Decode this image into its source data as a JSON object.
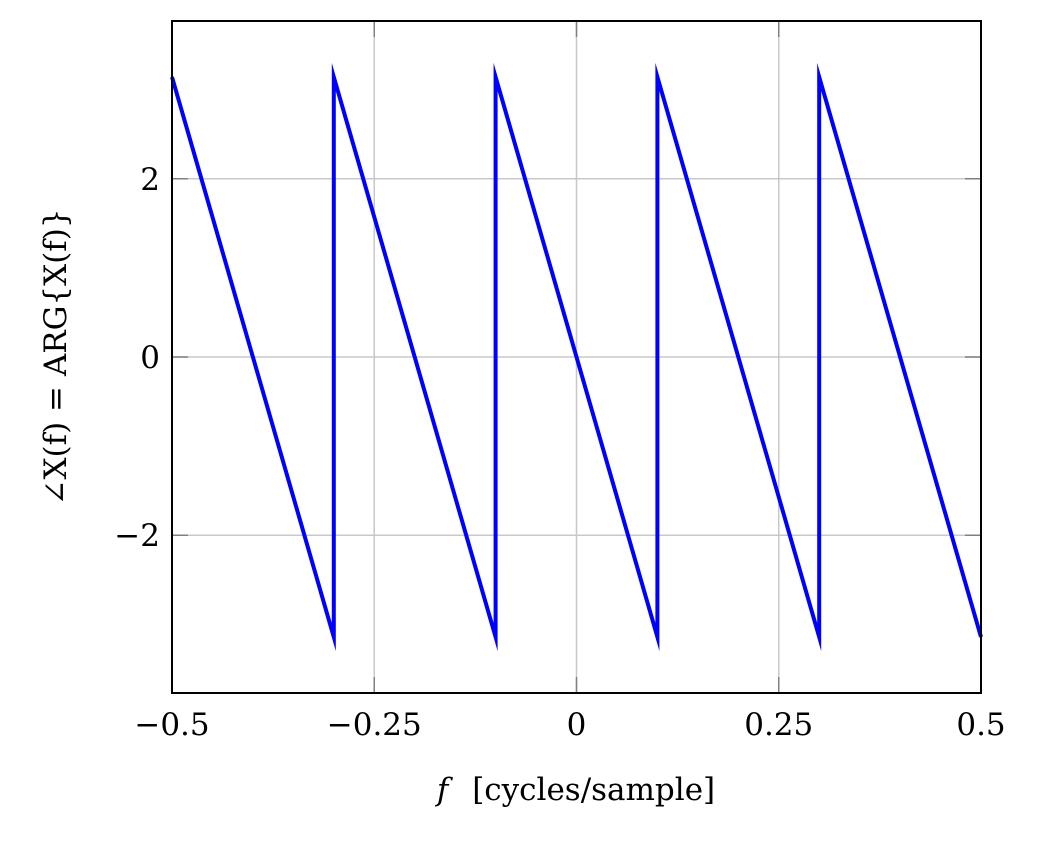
{
  "chart_data": {
    "type": "line",
    "title": "",
    "xlabel": "f  [cycles/sample]",
    "xlabel_parts": {
      "var": "f",
      "unit": "[cycles/sample]"
    },
    "ylabel": "∠X(f) = ARG{X(f)}",
    "xlim": [
      -0.5,
      0.5
    ],
    "ylim": [
      -3.77,
      3.77
    ],
    "grid": true,
    "legend": null,
    "x_ticks": [
      -0.5,
      -0.25,
      0,
      0.25,
      0.5
    ],
    "x_tick_labels": [
      "−0.5",
      "−0.25",
      "0",
      "0.25",
      "0.5"
    ],
    "y_ticks": [
      -2,
      0,
      2
    ],
    "y_tick_labels": [
      "−2",
      "0",
      "2"
    ],
    "series": [
      {
        "name": "phase",
        "color": "#0000ff",
        "x": [
          -0.5,
          -0.3,
          -0.3,
          -0.1,
          -0.1,
          0.1,
          0.1,
          0.3,
          0.3,
          0.5
        ],
        "y": [
          3.1416,
          -3.1416,
          3.1416,
          -3.1416,
          3.1416,
          -3.1416,
          3.1416,
          -3.1416,
          3.1416,
          -3.1416
        ]
      }
    ]
  },
  "colors": {
    "line": "#0000ff",
    "grid": "#c8c8c8",
    "tick": "#808080",
    "axis": "#000000"
  }
}
